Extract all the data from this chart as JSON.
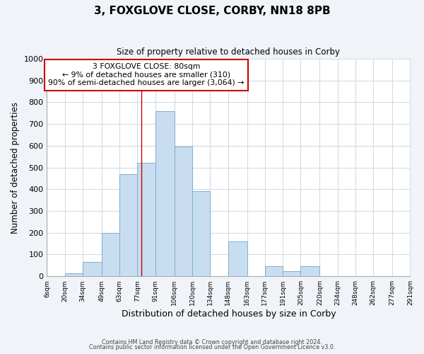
{
  "title": "3, FOXGLOVE CLOSE, CORBY, NN18 8PB",
  "subtitle": "Size of property relative to detached houses in Corby",
  "xlabel": "Distribution of detached houses by size in Corby",
  "ylabel": "Number of detached properties",
  "bar_edges": [
    6,
    20,
    34,
    49,
    63,
    77,
    91,
    106,
    120,
    134,
    148,
    163,
    177,
    191,
    205,
    220,
    234,
    248,
    262,
    277,
    291
  ],
  "bar_heights": [
    0,
    15,
    65,
    200,
    470,
    520,
    760,
    595,
    390,
    0,
    160,
    0,
    45,
    25,
    45,
    0,
    0,
    0,
    0,
    0
  ],
  "bar_color": "#c9ddf0",
  "bar_edge_color": "#7bafd4",
  "vline_x": 80,
  "vline_color": "#cc0000",
  "annotation_line1": "3 FOXGLOVE CLOSE: 80sqm",
  "annotation_line2": "← 9% of detached houses are smaller (310)",
  "annotation_line3": "90% of semi-detached houses are larger (3,064) →",
  "annotation_box_color": "#cc0000",
  "ylim": [
    0,
    1000
  ],
  "yticks": [
    0,
    100,
    200,
    300,
    400,
    500,
    600,
    700,
    800,
    900,
    1000
  ],
  "tick_labels": [
    "6sqm",
    "20sqm",
    "34sqm",
    "49sqm",
    "63sqm",
    "77sqm",
    "91sqm",
    "106sqm",
    "120sqm",
    "134sqm",
    "148sqm",
    "163sqm",
    "177sqm",
    "191sqm",
    "205sqm",
    "220sqm",
    "234sqm",
    "248sqm",
    "262sqm",
    "277sqm",
    "291sqm"
  ],
  "footer1": "Contains HM Land Registry data © Crown copyright and database right 2024.",
  "footer2": "Contains public sector information licensed under the Open Government Licence v3.0.",
  "bg_color": "#f0f4f9",
  "plot_bg_color": "#ffffff",
  "grid_color": "#d0dce8"
}
